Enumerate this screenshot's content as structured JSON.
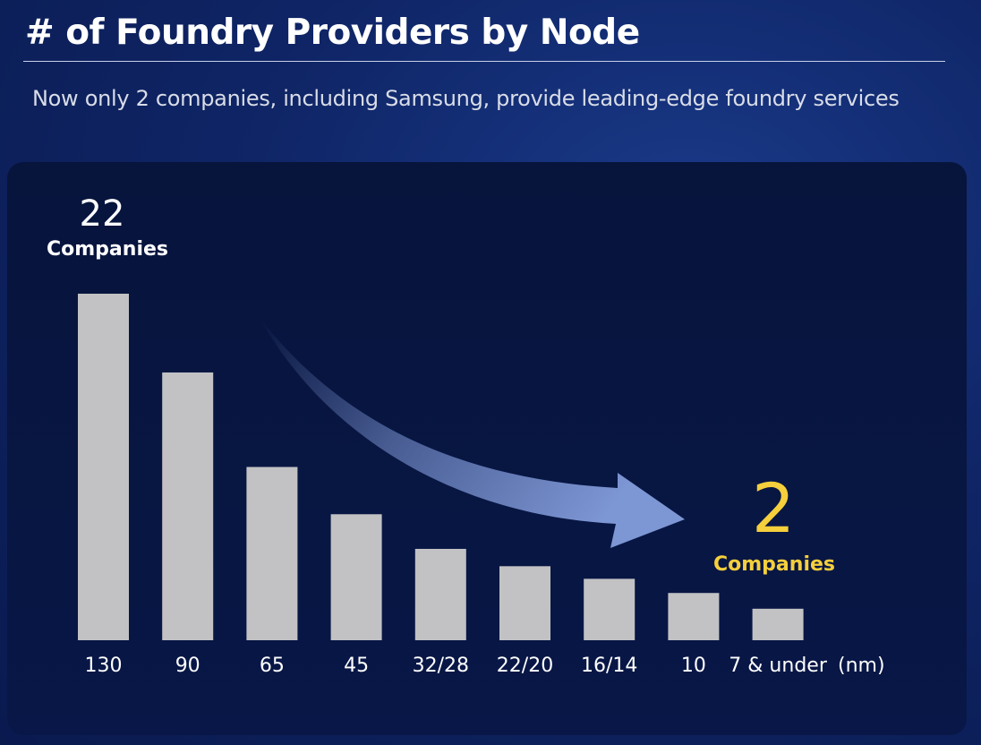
{
  "header": {
    "title": "# of Foundry Providers by Node",
    "subtitle": "Now only 2 companies, including Samsung, provide leading-edge foundry services"
  },
  "callouts": {
    "start": {
      "number": "22",
      "caption": "Companies"
    },
    "end": {
      "number": "2",
      "caption": "Companies"
    }
  },
  "colors": {
    "bar": "#c2c2c4",
    "highlight": "#f5cf3c",
    "arrow": "#7d96d4"
  },
  "chart_data": {
    "type": "bar",
    "title": "# of Foundry Providers by Node",
    "xlabel": "(nm)",
    "ylabel": "",
    "categories": [
      "130",
      "90",
      "65",
      "45",
      "32/28",
      "22/20",
      "16/14",
      "10",
      "7 & under"
    ],
    "values": [
      22,
      17,
      11,
      8,
      5.8,
      4.7,
      3.9,
      3,
      2
    ],
    "ylim": [
      0,
      22
    ],
    "grid": false,
    "annotations": [
      "22 Companies",
      "2 Companies"
    ]
  }
}
